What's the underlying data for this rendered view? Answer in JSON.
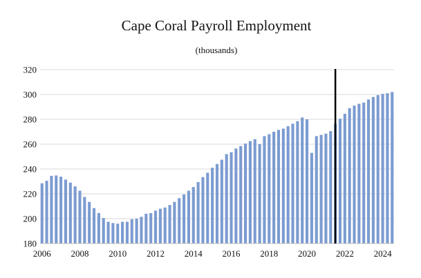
{
  "chart_data": {
    "type": "bar",
    "title": "Cape Coral Payroll Employment",
    "subtitle": "(thousands)",
    "xlabel": "",
    "ylabel": "",
    "ylim": [
      180,
      320
    ],
    "y_ticks": [
      180,
      200,
      220,
      240,
      260,
      280,
      300,
      320
    ],
    "x_ticks": [
      2006,
      2008,
      2010,
      2012,
      2014,
      2016,
      2018,
      2020,
      2022,
      2024
    ],
    "x_range": [
      2005.9,
      2024.6
    ],
    "grid": true,
    "bar_color": "#7b9bd1",
    "marker_color": "#000000",
    "forecast_marker_x": 2021.5,
    "x": [
      2006.0,
      2006.25,
      2006.5,
      2006.75,
      2007.0,
      2007.25,
      2007.5,
      2007.75,
      2008.0,
      2008.25,
      2008.5,
      2008.75,
      2009.0,
      2009.25,
      2009.5,
      2009.75,
      2010.0,
      2010.25,
      2010.5,
      2010.75,
      2011.0,
      2011.25,
      2011.5,
      2011.75,
      2012.0,
      2012.25,
      2012.5,
      2012.75,
      2013.0,
      2013.25,
      2013.5,
      2013.75,
      2014.0,
      2014.25,
      2014.5,
      2014.75,
      2015.0,
      2015.25,
      2015.5,
      2015.75,
      2016.0,
      2016.25,
      2016.5,
      2016.75,
      2017.0,
      2017.25,
      2017.5,
      2017.75,
      2018.0,
      2018.25,
      2018.5,
      2018.75,
      2019.0,
      2019.25,
      2019.5,
      2019.75,
      2020.0,
      2020.25,
      2020.5,
      2020.75,
      2021.0,
      2021.25,
      2021.5,
      2021.75,
      2022.0,
      2022.25,
      2022.5,
      2022.75,
      2023.0,
      2023.25,
      2023.5,
      2023.75,
      2024.0,
      2024.25,
      2024.5
    ],
    "values": [
      228.5,
      230.5,
      234.5,
      234.8,
      233.8,
      231.5,
      229.0,
      226.0,
      222.5,
      217.5,
      213.5,
      208.5,
      204.5,
      200.5,
      197.5,
      196.5,
      196.0,
      197.5,
      197.5,
      199.5,
      200.0,
      201.5,
      204.0,
      204.5,
      206.5,
      208.0,
      209.0,
      211.0,
      213.5,
      216.5,
      219.5,
      222.5,
      225.5,
      229.5,
      233.5,
      237.0,
      241.0,
      244.0,
      247.5,
      252.0,
      253.5,
      256.5,
      258.5,
      260.5,
      262.5,
      264.0,
      260.0,
      266.5,
      268.0,
      270.0,
      271.5,
      272.5,
      274.5,
      276.5,
      278.5,
      281.5,
      280.0,
      253.0,
      266.5,
      267.5,
      268.5,
      270.5,
      276.5,
      280.5,
      284.5,
      289.0,
      291.0,
      292.5,
      293.5,
      296.0,
      298.0,
      299.5,
      300.5,
      301.0,
      302.0
    ]
  }
}
